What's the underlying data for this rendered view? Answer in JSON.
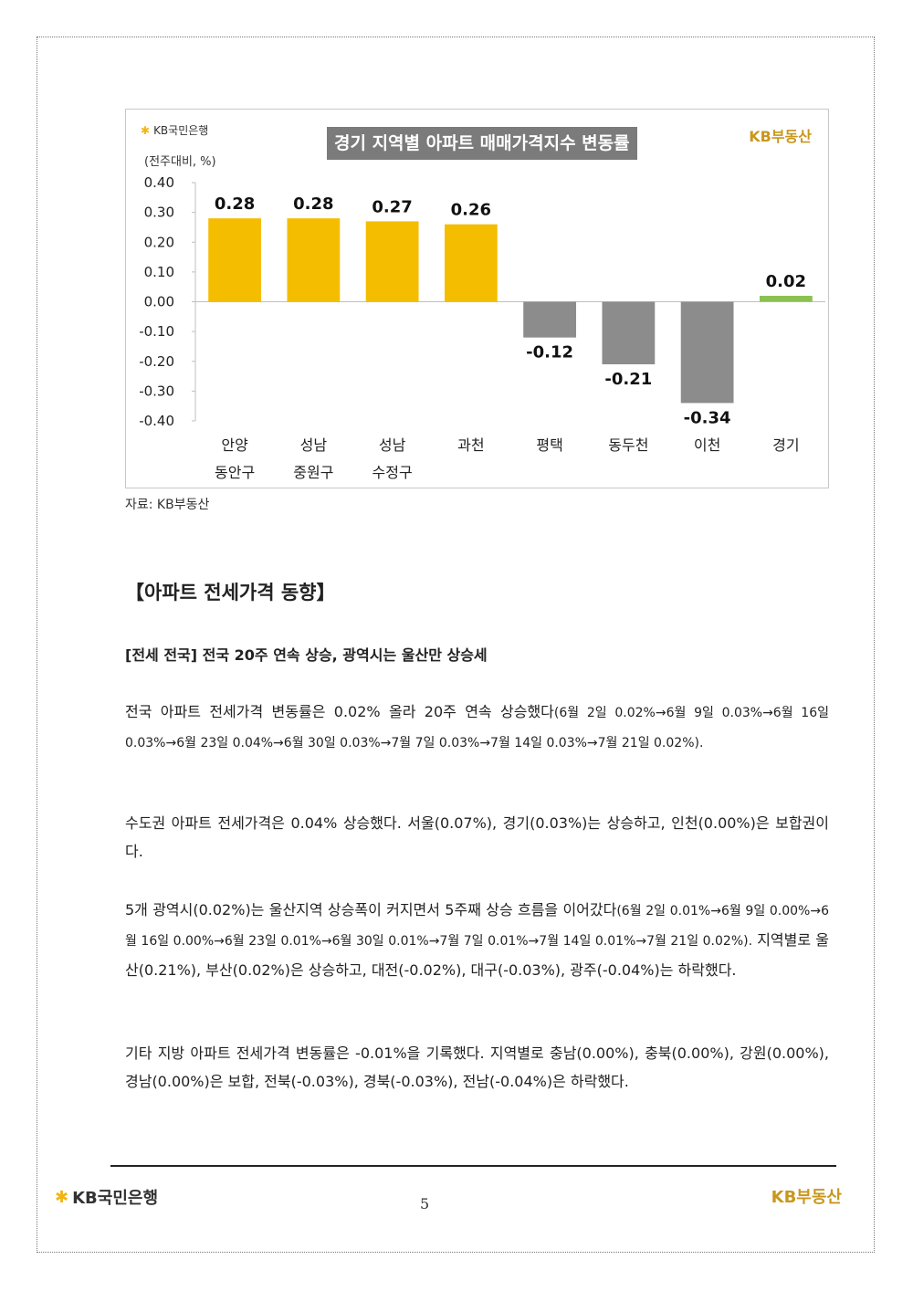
{
  "chart_data": {
    "type": "bar",
    "title": "경기 지역별 아파트 매매가격지수 변동률",
    "unit_label": "(전주대비, %)",
    "categories": [
      [
        "안양",
        "동안구"
      ],
      [
        "성남",
        "중원구"
      ],
      [
        "성남",
        "수정구"
      ],
      [
        "과천"
      ],
      [
        "평택"
      ],
      [
        "동두천"
      ],
      [
        "이천"
      ],
      [
        "경기"
      ]
    ],
    "values": [
      0.28,
      0.28,
      0.27,
      0.26,
      -0.12,
      -0.21,
      -0.34,
      0.02
    ],
    "value_labels": [
      "0.28",
      "0.28",
      "0.27",
      "0.26",
      "-0.12",
      "-0.21",
      "-0.34",
      "0.02"
    ],
    "yticks": [
      "0.40",
      "0.30",
      "0.20",
      "0.10",
      "0.00",
      "-0.10",
      "-0.20",
      "-0.30",
      "-0.40"
    ],
    "ylim": [
      -0.4,
      0.4
    ],
    "colors": [
      "#f5bd00",
      "#f5bd00",
      "#f5bd00",
      "#f5bd00",
      "#8c8c8c",
      "#8c8c8c",
      "#8c8c8c",
      "#8cc152"
    ],
    "grid": false
  },
  "logos": {
    "bank": "KB국민은행",
    "realestate": "KB부동산",
    "bank_star": "✱"
  },
  "source": "자료: KB부동산",
  "section_title": "【아파트 전세가격 동향】",
  "subhead": "[전세 전국] 전국 20주 연속 상승, 광역시는 울산만 상승세",
  "paragraphs": [
    {
      "main": "전국 아파트 전세가격 변동률은 0.02% 올라 20주 연속 상승했다",
      "detail": "(6월 2일 0.02%→6월 9일 0.03%→6월 16일 0.03%→6월 23일 0.04%→6월 30일 0.03%→7월 7일 0.03%→7월 14일 0.03%→7월 21일 0.02%).",
      "rest": ""
    },
    {
      "main": "수도권 아파트 전세가격은 0.04% 상승했다. 서울(0.07%), 경기(0.03%)는 상승하고, 인천(0.00%)은 보합권이다.",
      "detail": "",
      "rest": ""
    },
    {
      "main": "5개 광역시(0.02%)는 울산지역 상승폭이 커지면서 5주째 상승 흐름을 이어갔다",
      "detail": "(6월 2일 0.01%→6월 9일 0.00%→6월 16일 0.00%→6월 23일 0.01%→6월 30일 0.01%→7월 7일 0.01%→7월 14일 0.01%→7월 21일 0.02%).",
      "rest": " 지역별로 울산(0.21%), 부산(0.02%)은 상승하고, 대전(-0.02%), 대구(-0.03%), 광주(-0.04%)는 하락했다."
    },
    {
      "main": "기타 지방 아파트 전세가격 변동률은 -0.01%을 기록했다. 지역별로 충남(0.00%), 충북(0.00%), 강원(0.00%), 경남(0.00%)은 보합, 전북(-0.03%), 경북(-0.03%), 전남(-0.04%)은 하락했다.",
      "detail": "",
      "rest": ""
    }
  ],
  "page_number": "5"
}
